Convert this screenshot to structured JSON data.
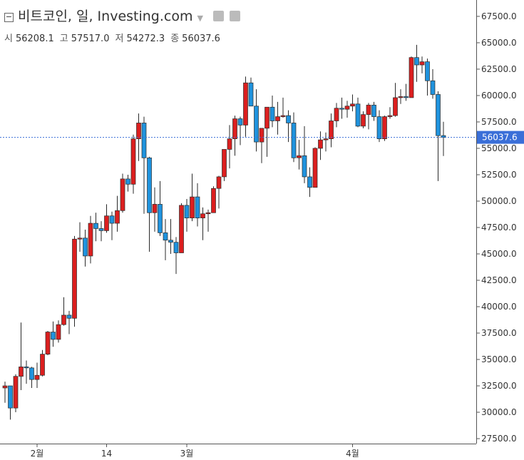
{
  "header": {
    "title": "비트코인, 일, Investing.com",
    "ohlc": [
      {
        "label": "시",
        "value": "56208.1"
      },
      {
        "label": "고",
        "value": "57517.0"
      },
      {
        "label": "저",
        "value": "54272.3"
      },
      {
        "label": "종",
        "value": "56037.6"
      }
    ]
  },
  "chart_data": {
    "type": "candlestick",
    "up_color": "#dc1f1f",
    "down_color": "#1f93de",
    "outline_color": "#2a2a2a",
    "last_price_color": "#3a6fd8",
    "ylim": [
      27030,
      69050
    ],
    "yticks": [
      {
        "value": 27500,
        "label": "27500.0"
      },
      {
        "value": 30000,
        "label": "30000.0"
      },
      {
        "value": 32500,
        "label": "32500.0"
      },
      {
        "value": 35000,
        "label": "35000.0"
      },
      {
        "value": 37500,
        "label": "37500.0"
      },
      {
        "value": 40000,
        "label": "40000.0"
      },
      {
        "value": 42500,
        "label": "42500.0"
      },
      {
        "value": 45000,
        "label": "45000.0"
      },
      {
        "value": 47500,
        "label": "47500.0"
      },
      {
        "value": 50000,
        "label": "50000.0"
      },
      {
        "value": 52500,
        "label": "52500.0"
      },
      {
        "value": 55000,
        "label": "55000.0"
      },
      {
        "value": 57500,
        "label": "57500.0"
      },
      {
        "value": 60000,
        "label": "60000.0"
      },
      {
        "value": 62500,
        "label": "62500.0"
      },
      {
        "value": 65000,
        "label": "65000.0"
      },
      {
        "value": 67500,
        "label": "67500.0"
      }
    ],
    "xticks": [
      {
        "value": 6,
        "label": "2월"
      },
      {
        "value": 19,
        "label": "14"
      },
      {
        "value": 34,
        "label": "3월"
      },
      {
        "value": 65,
        "label": "4월"
      }
    ],
    "open": [
      32300,
      32500,
      30400,
      33400,
      34300,
      34200,
      33100,
      33500,
      35500,
      37600,
      36900,
      38300,
      39200,
      38900,
      46400,
      46500,
      44800,
      47900,
      47400,
      47200,
      48600,
      47900,
      49100,
      52100,
      51600,
      55900,
      57400,
      54100,
      48900,
      49700,
      47000,
      46300,
      46100,
      45100,
      49600,
      48400,
      50400,
      48400,
      48800,
      48900,
      51200,
      52300,
      54900,
      55900,
      57800,
      57200,
      61200,
      59000,
      55600,
      56900,
      58900,
      57600,
      58000,
      58100,
      57400,
      54100,
      54300,
      52300,
      51300,
      55000,
      55800,
      55900,
      57600,
      58800,
      58700,
      59000,
      59200,
      57100,
      58200,
      59100,
      58000,
      55900,
      58000,
      58100,
      59800,
      59900,
      59800,
      63600,
      62900,
      63200,
      61400,
      60100,
      56208.1
    ],
    "high": [
      32900,
      32500,
      33600,
      38500,
      34900,
      34300,
      34700,
      35900,
      37700,
      38600,
      38700,
      40900,
      39600,
      46700,
      48000,
      47300,
      48600,
      48900,
      48100,
      49700,
      49000,
      50500,
      52600,
      52500,
      56300,
      58300,
      58000,
      54200,
      51300,
      51900,
      48300,
      48300,
      46600,
      49800,
      50200,
      52600,
      51700,
      49400,
      49200,
      51400,
      52400,
      54900,
      57200,
      58100,
      58000,
      61800,
      61700,
      60600,
      56900,
      58900,
      60000,
      59400,
      59800,
      58600,
      58400,
      55800,
      57100,
      53200,
      55100,
      56600,
      56500,
      58300,
      59300,
      59800,
      59500,
      60100,
      59800,
      58500,
      59300,
      59400,
      58600,
      58100,
      58900,
      61200,
      60600,
      61100,
      63700,
      64800,
      63700,
      63500,
      62500,
      60400,
      57517
    ],
    "low": [
      30900,
      29300,
      30000,
      32100,
      32700,
      32300,
      32300,
      33400,
      35400,
      36200,
      36600,
      38200,
      37400,
      38100,
      45200,
      43800,
      44100,
      46200,
      46200,
      47000,
      46300,
      47100,
      48900,
      50900,
      50700,
      53800,
      48800,
      45200,
      47100,
      46700,
      44400,
      45000,
      43100,
      45100,
      47100,
      48100,
      47600,
      46300,
      47100,
      48900,
      49300,
      51900,
      53100,
      54300,
      55300,
      56100,
      59000,
      54700,
      53600,
      54200,
      57000,
      56300,
      57900,
      55600,
      53700,
      53000,
      51700,
      50400,
      51300,
      53900,
      54700,
      55100,
      57000,
      57800,
      57900,
      58500,
      57000,
      56900,
      56800,
      57600,
      55600,
      55700,
      57800,
      58000,
      59200,
      59500,
      59800,
      61300,
      62100,
      60000,
      59700,
      51900,
      54272.3
    ],
    "close": [
      32500,
      30400,
      33400,
      34300,
      34200,
      33100,
      33500,
      35500,
      37600,
      36900,
      38300,
      39200,
      38900,
      46400,
      46500,
      44800,
      47900,
      47400,
      47200,
      48600,
      47900,
      49100,
      52100,
      51600,
      55900,
      57400,
      54100,
      48900,
      49700,
      47000,
      46300,
      46100,
      45100,
      49600,
      48400,
      50400,
      48400,
      48800,
      48900,
      51200,
      52300,
      54900,
      55900,
      57800,
      57200,
      61200,
      59000,
      55600,
      56900,
      58900,
      57600,
      58000,
      58100,
      57400,
      54100,
      54300,
      52300,
      51300,
      55000,
      55800,
      55900,
      57600,
      58800,
      58700,
      59000,
      59200,
      57100,
      58200,
      59100,
      58000,
      55900,
      58000,
      58100,
      59800,
      59900,
      59800,
      63600,
      62900,
      63200,
      61400,
      60100,
      56200,
      56037.6
    ]
  }
}
